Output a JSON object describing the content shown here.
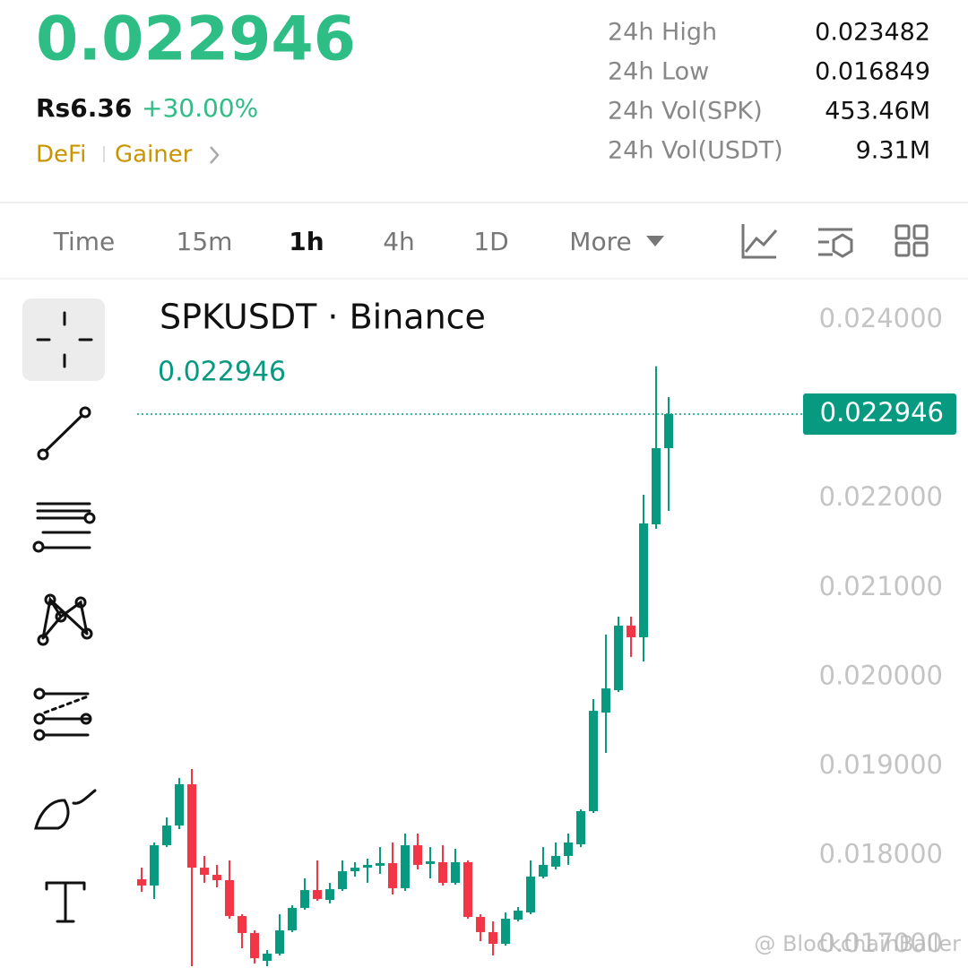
{
  "header": {
    "price": "0.022946",
    "fiat": "Rs6.36",
    "change": "+30.00%",
    "tags": [
      "DeFi",
      "Gainer"
    ]
  },
  "stats": [
    {
      "label": "24h High",
      "value": "0.023482"
    },
    {
      "label": "24h Low",
      "value": "0.016849"
    },
    {
      "label": "24h Vol(SPK)",
      "value": "453.46M"
    },
    {
      "label": "24h Vol(USDT)",
      "value": "9.31M"
    }
  ],
  "tabs": [
    "Time",
    "15m",
    "1h",
    "4h",
    "1D",
    "More"
  ],
  "active_tab": 2,
  "chart_data": {
    "type": "candlestick",
    "title": "SPKUSDT · Binance",
    "last_price": 0.022946,
    "up_color": "#089981",
    "down_color": "#f23645",
    "series": {
      "open": [
        0.017735,
        0.017665,
        0.018116,
        0.018337,
        0.018799,
        0.017865,
        0.017785,
        0.017725,
        0.017323,
        0.017133,
        0.016821,
        0.016902,
        0.017163,
        0.017414,
        0.017614,
        0.017504,
        0.017624,
        0.017825,
        0.017865,
        0.017886,
        0.017916,
        0.017635,
        0.018116,
        0.017906,
        0.017926,
        0.017695,
        0.017926,
        0.017313,
        0.017143,
        0.017012,
        0.017283,
        0.017363,
        0.017765,
        0.017876,
        0.017996,
        0.018127,
        0.018498,
        0.019602,
        0.019853,
        0.020576,
        0.020446,
        0.021711,
        0.022564
      ],
      "high": [
        0.017865,
        0.018147,
        0.018428,
        0.018869,
        0.01897,
        0.017996,
        0.017896,
        0.017946,
        0.017343,
        0.017163,
        0.016942,
        0.017343,
        0.017444,
        0.017745,
        0.017946,
        0.017695,
        0.017946,
        0.017926,
        0.017966,
        0.018096,
        0.018147,
        0.018247,
        0.018247,
        0.018096,
        0.018116,
        0.018076,
        0.017946,
        0.017343,
        0.017263,
        0.017363,
        0.017424,
        0.017946,
        0.018096,
        0.018147,
        0.018247,
        0.018518,
        0.019753,
        0.020476,
        0.020677,
        0.020677,
        0.022042,
        0.023482,
        0.023137
      ],
      "low": [
        0.017594,
        0.017514,
        0.018096,
        0.018297,
        0.016761,
        0.017695,
        0.017645,
        0.017293,
        0.016962,
        0.016791,
        0.016761,
        0.016882,
        0.017143,
        0.017394,
        0.017494,
        0.017464,
        0.017604,
        0.017765,
        0.017695,
        0.017795,
        0.017564,
        0.017604,
        0.017845,
        0.017745,
        0.017665,
        0.017675,
        0.017293,
        0.017042,
        0.016882,
        0.016992,
        0.017263,
        0.017343,
        0.017745,
        0.017845,
        0.017896,
        0.018096,
        0.018478,
        0.019151,
        0.019833,
        0.020225,
        0.020175,
        0.021661,
        0.021861
      ],
      "close": [
        0.017665,
        0.018116,
        0.018337,
        0.018799,
        0.017865,
        0.017785,
        0.017725,
        0.017323,
        0.017133,
        0.016851,
        0.016902,
        0.017163,
        0.017414,
        0.017614,
        0.017514,
        0.017624,
        0.017825,
        0.017865,
        0.017896,
        0.017916,
        0.017635,
        0.018116,
        0.017896,
        0.017936,
        0.017695,
        0.017926,
        0.017313,
        0.017143,
        0.017012,
        0.017293,
        0.017384,
        0.017765,
        0.017896,
        0.017996,
        0.018147,
        0.018498,
        0.019622,
        0.019873,
        0.020576,
        0.020446,
        0.021721,
        0.022564,
        0.022946
      ]
    },
    "ylim": [
      0.016741,
      0.024452
    ],
    "yticks": [
      {
        "value": 0.017,
        "label": "0.017000"
      },
      {
        "value": 0.018,
        "label": "0.018000"
      },
      {
        "value": 0.019,
        "label": "0.019000"
      },
      {
        "value": 0.02,
        "label": "0.020000"
      },
      {
        "value": 0.021,
        "label": "0.021000"
      },
      {
        "value": 0.022,
        "label": "0.022000"
      },
      {
        "value": 0.024,
        "label": "0.024000"
      }
    ],
    "grid": false
  },
  "watermark": "@ BlockchainBaller"
}
